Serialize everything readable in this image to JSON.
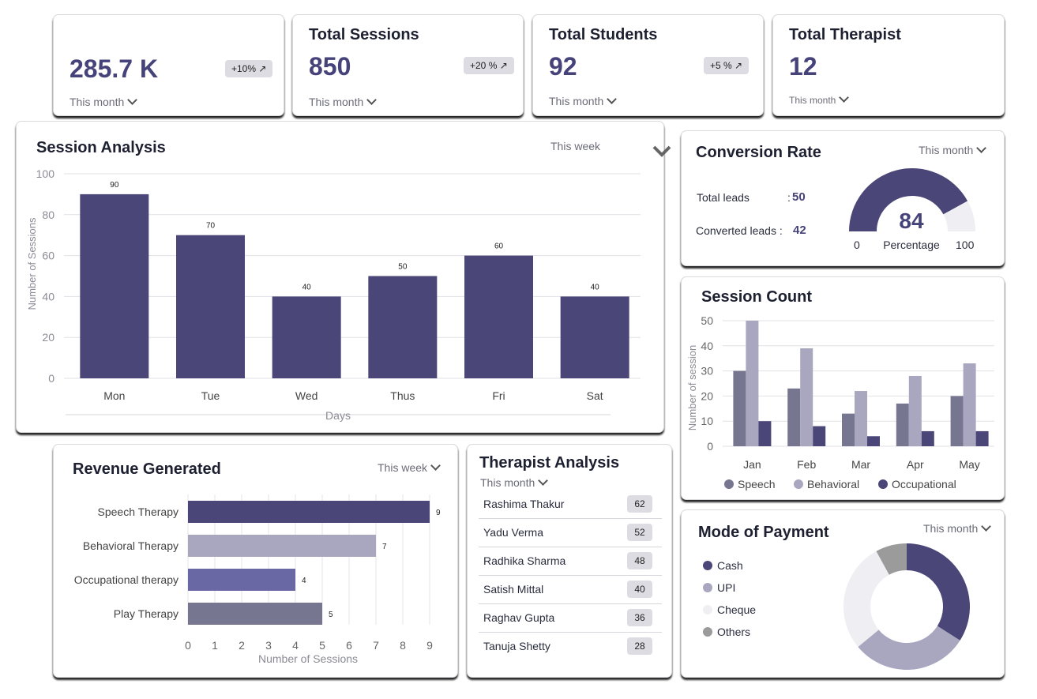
{
  "stats": [
    {
      "title": "",
      "value": "285.7 K",
      "badge": "+10% ↗",
      "period": "This month"
    },
    {
      "title": "Total Sessions",
      "value": "850",
      "badge": "+20 % ↗",
      "period": "This month"
    },
    {
      "title": "Total Students",
      "value": "92",
      "badge": "+5 % ↗",
      "period": "This month"
    },
    {
      "title": "Total Therapist",
      "value": "12",
      "badge": "",
      "period": "This month"
    }
  ],
  "session_analysis": {
    "title": "Session Analysis",
    "period": "This week"
  },
  "conversion": {
    "title": "Conversion Rate",
    "period": "This month",
    "total_leads_label": "Total leads",
    "total_leads_sep": ":",
    "total_leads_value": "50",
    "converted_label": "Converted leads :",
    "converted_value": "42",
    "gauge_value": "84",
    "gauge_label": "Percentage",
    "gauge_min": "0",
    "gauge_max": "100"
  },
  "session_count": {
    "title": "Session Count"
  },
  "revenue": {
    "title": "Revenue Generated",
    "period": "This week"
  },
  "therapist": {
    "title": "Therapist Analysis",
    "period": "This month",
    "rows": [
      {
        "name": "Rashima Thakur",
        "count": "62"
      },
      {
        "name": "Yadu Verma",
        "count": "52"
      },
      {
        "name": "Radhika Sharma",
        "count": "48"
      },
      {
        "name": "Satish Mittal",
        "count": "40"
      },
      {
        "name": "Raghav Gupta",
        "count": "36"
      },
      {
        "name": "Tanuja Shetty",
        "count": "28"
      }
    ]
  },
  "payment": {
    "title": "Mode of Payment",
    "period": "This month"
  },
  "colors": {
    "primary": "#4a4778",
    "light": "#a9a7bf",
    "mid": "#6a67a5",
    "slate": "#777690",
    "gray": "#9b9b9b",
    "pale": "#eeeef3"
  },
  "chart_data": [
    {
      "id": "session_analysis",
      "type": "bar",
      "categories": [
        "Mon",
        "Tue",
        "Wed",
        "Thus",
        "Fri",
        "Sat"
      ],
      "values": [
        90,
        70,
        40,
        50,
        60,
        40
      ],
      "xlabel": "Days",
      "ylabel": "Number of Sessions",
      "ylim": [
        0,
        100
      ],
      "yticks": [
        0,
        20,
        40,
        60,
        80,
        100
      ]
    },
    {
      "id": "session_count",
      "type": "bar",
      "categories": [
        "Jan",
        "Feb",
        "Mar",
        "Apr",
        "May"
      ],
      "series": [
        {
          "name": "Speech",
          "values": [
            30,
            23,
            13,
            17,
            20
          ]
        },
        {
          "name": "Behavioral",
          "values": [
            50,
            39,
            22,
            28,
            33
          ]
        },
        {
          "name": "Occupational",
          "values": [
            10,
            8,
            4,
            6,
            6
          ]
        }
      ],
      "ylabel": "Number of session",
      "ylim": [
        0,
        50
      ],
      "yticks": [
        0,
        10,
        20,
        30,
        40,
        50
      ]
    },
    {
      "id": "revenue",
      "type": "bar",
      "orientation": "horizontal",
      "categories": [
        "Speech Therapy",
        "Behavioral Therapy",
        "Occupational therapy",
        "Play Therapy"
      ],
      "values": [
        9,
        7,
        4,
        5
      ],
      "xlabel": "Number of Sessions",
      "xlim": [
        0,
        9
      ],
      "xticks": [
        0,
        1,
        2,
        3,
        4,
        5,
        6,
        7,
        8,
        9
      ]
    },
    {
      "id": "payment",
      "type": "pie",
      "style": "donut",
      "labels": [
        "Cash",
        "UPI",
        "Cheque",
        "Others"
      ],
      "values": [
        34,
        30,
        28,
        8
      ]
    },
    {
      "id": "conversion_gauge",
      "type": "gauge",
      "value": 84,
      "min": 0,
      "max": 100
    }
  ]
}
